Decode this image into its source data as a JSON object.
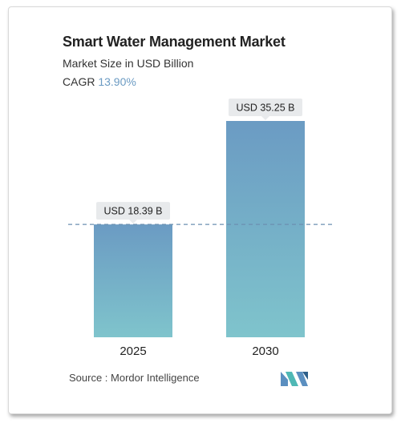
{
  "title": "Smart Water Management Market",
  "subtitle": "Market Size in USD Billion",
  "cagr": {
    "label": "CAGR",
    "value": "13.90%"
  },
  "chart_data": {
    "type": "bar",
    "categories": [
      "2025",
      "2030"
    ],
    "values": [
      18.39,
      35.25
    ],
    "data_labels": [
      "USD 18.39 B",
      "USD 35.25 B"
    ],
    "title": "Smart Water Management Market",
    "subtitle": "Market Size in USD Billion",
    "xlabel": "",
    "ylabel": "",
    "ylim": [
      0,
      35.25
    ],
    "grid": false,
    "reference_line": "dashed line at first bar value",
    "colors": {
      "bar_top": "#6b9bc3",
      "bar_bottom": "#7fc4cc",
      "label_bg": "#e8eaec",
      "dash": "#6b8fb0"
    }
  },
  "source": {
    "label": "Source :",
    "name": "Mordor Intelligence"
  },
  "logo": {
    "icon": "mordor-intelligence-logo-icon",
    "colors": [
      "#5b8fc0",
      "#4fb8b5",
      "#2d5f8a"
    ]
  }
}
